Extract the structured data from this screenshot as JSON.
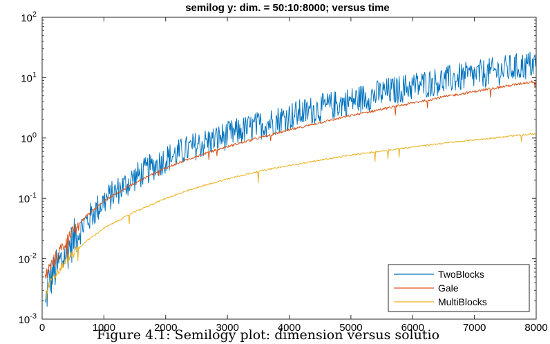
{
  "chart_data": {
    "type": "line",
    "title": "semilog y:  dim. = 50:10:8000; versus time",
    "xlabel": "",
    "ylabel": "",
    "xlim": [
      0,
      8000
    ],
    "ylim": [
      0.001,
      100
    ],
    "yscale": "log",
    "grid": false,
    "legend_position": "bottom-right",
    "x_ticks": [
      "0",
      "1000",
      "2000",
      "3000",
      "4000",
      "5000",
      "6000",
      "7000",
      "8000"
    ],
    "y_ticks": [
      {
        "base": "10",
        "exp": "-3"
      },
      {
        "base": "10",
        "exp": "-2"
      },
      {
        "base": "10",
        "exp": "-1"
      },
      {
        "base": "10",
        "exp": "0"
      },
      {
        "base": "10",
        "exp": "1"
      },
      {
        "base": "10",
        "exp": "2"
      }
    ],
    "x_range": {
      "start": 50,
      "step": 10,
      "end": 8000
    },
    "series": [
      {
        "name": "TwoBlocks",
        "color": "#0072BD",
        "x": [
          50,
          100,
          200,
          300,
          400,
          500,
          700,
          1000,
          1500,
          2000,
          2500,
          3000,
          3500,
          4000,
          4500,
          5000,
          5500,
          6000,
          6500,
          7000,
          7500,
          8000
        ],
        "values": [
          0.0015,
          0.004,
          0.006,
          0.009,
          0.013,
          0.02,
          0.04,
          0.09,
          0.22,
          0.45,
          0.75,
          1.1,
          1.6,
          2.3,
          3.1,
          4.1,
          5.5,
          7.2,
          9.0,
          11.0,
          13.5,
          17.0
        ]
      },
      {
        "name": "Gale",
        "color": "#D95319",
        "x": [
          50,
          100,
          200,
          300,
          400,
          500,
          700,
          1000,
          1500,
          2000,
          2500,
          3000,
          3500,
          4000,
          4500,
          5000,
          5500,
          6000,
          6500,
          7000,
          7500,
          8000
        ],
        "values": [
          0.005,
          0.0065,
          0.0095,
          0.014,
          0.02,
          0.028,
          0.05,
          0.09,
          0.18,
          0.32,
          0.5,
          0.72,
          1.0,
          1.35,
          1.8,
          2.35,
          3.0,
          3.8,
          4.8,
          5.9,
          7.2,
          8.8
        ]
      },
      {
        "name": "MultiBlocks",
        "color": "#EDB120",
        "x": [
          50,
          100,
          200,
          300,
          400,
          500,
          700,
          1000,
          1500,
          2000,
          2500,
          3000,
          3500,
          4000,
          4500,
          5000,
          5500,
          6000,
          6500,
          7000,
          7500,
          8000
        ],
        "values": [
          0.002,
          0.0035,
          0.005,
          0.007,
          0.0095,
          0.012,
          0.019,
          0.032,
          0.06,
          0.1,
          0.15,
          0.21,
          0.28,
          0.35,
          0.43,
          0.52,
          0.61,
          0.71,
          0.82,
          0.93,
          1.05,
          1.18
        ]
      }
    ]
  },
  "caption": "Figure 4.1: Semilogy plot: dimension versus solutio"
}
